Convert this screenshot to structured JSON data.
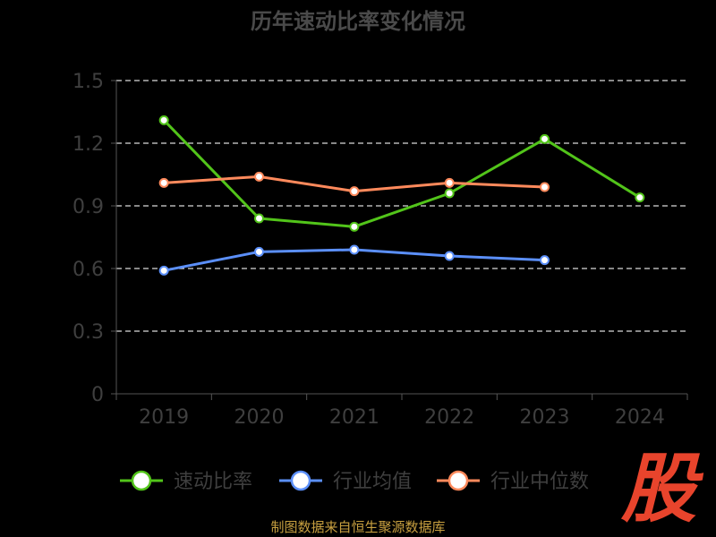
{
  "chart_data": {
    "type": "line",
    "title": "历年速动比率变化情况",
    "categories": [
      "2019",
      "2020",
      "2021",
      "2022",
      "2023",
      "2024"
    ],
    "y_ticks": [
      "0",
      "0.3",
      "0.6",
      "0.9",
      "1.2",
      "1.5"
    ],
    "ylim": [
      0,
      1.5
    ],
    "grid": true,
    "legend_position": "bottom",
    "series": [
      {
        "name": "速动比率",
        "color": "#52c41a",
        "values": [
          1.31,
          0.84,
          0.8,
          0.96,
          1.22,
          0.94
        ]
      },
      {
        "name": "行业均值",
        "color": "#5b8ff9",
        "values": [
          0.59,
          0.68,
          0.69,
          0.66,
          0.64,
          null
        ]
      },
      {
        "name": "行业中位数",
        "color": "#ff8a5c",
        "values": [
          1.01,
          1.04,
          0.97,
          1.01,
          0.99,
          null
        ]
      }
    ]
  },
  "source_text": "制图数据来自恒生聚源数据库",
  "logo_text": "股"
}
